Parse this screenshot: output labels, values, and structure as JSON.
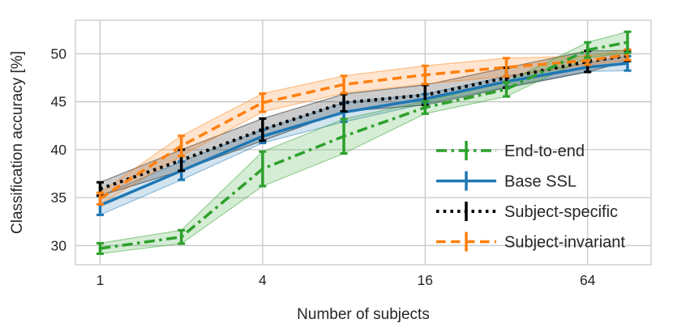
{
  "chart_data": {
    "type": "line",
    "title": "",
    "xlabel": "Number of subjects",
    "ylabel": "Classification accuracy [%]",
    "x_scale": "log",
    "grid": true,
    "legend_position": "center right",
    "xlim": [
      0.81,
      110
    ],
    "ylim": [
      28,
      53.5
    ],
    "x": [
      1,
      2,
      4,
      8,
      16,
      32,
      64,
      90
    ],
    "x_ticks": [
      1,
      4,
      16,
      64
    ],
    "x_tick_labels": [
      "1",
      "4",
      "16",
      "64"
    ],
    "y_ticks": [
      30,
      35,
      40,
      45,
      50
    ],
    "y_tick_labels": [
      "30",
      "35",
      "40",
      "45",
      "50"
    ],
    "colors": {
      "grid": "#c9c9c9",
      "spine": "#c9c9c9",
      "text": "#262626"
    },
    "draw_order": [
      1,
      2,
      3,
      0
    ],
    "series": [
      {
        "name": "End-to-end",
        "color": "#2ca02c",
        "style": "dashdot",
        "values": [
          29.7,
          30.9,
          38.0,
          41.4,
          44.4,
          46.3,
          50.4,
          51.2
        ],
        "err": [
          0.55,
          0.7,
          1.8,
          1.8,
          0.65,
          0.75,
          0.8,
          1.1
        ]
      },
      {
        "name": "Base SSL",
        "color": "#1f77b4",
        "style": "solid",
        "values": [
          34.2,
          37.8,
          41.4,
          43.9,
          45.3,
          47.1,
          48.6,
          49.0
        ],
        "err": [
          1.0,
          0.95,
          0.7,
          1.0,
          0.5,
          0.55,
          0.45,
          0.75
        ]
      },
      {
        "name": "Subject-specific",
        "color": "#000000",
        "style": "dotted",
        "values": [
          35.9,
          38.9,
          42.1,
          44.9,
          45.7,
          47.5,
          49.2,
          49.8
        ],
        "err": [
          0.7,
          1.1,
          1.15,
          0.9,
          1.05,
          1.05,
          1.1,
          0.55
        ]
      },
      {
        "name": "Subject-invariant",
        "color": "#ff7f0e",
        "style": "dashed",
        "values": [
          34.9,
          40.4,
          44.9,
          46.8,
          47.8,
          48.6,
          49.3,
          49.9
        ],
        "err": [
          0.6,
          1.05,
          0.95,
          0.9,
          0.95,
          0.95,
          0.45,
          0.55
        ]
      }
    ]
  }
}
